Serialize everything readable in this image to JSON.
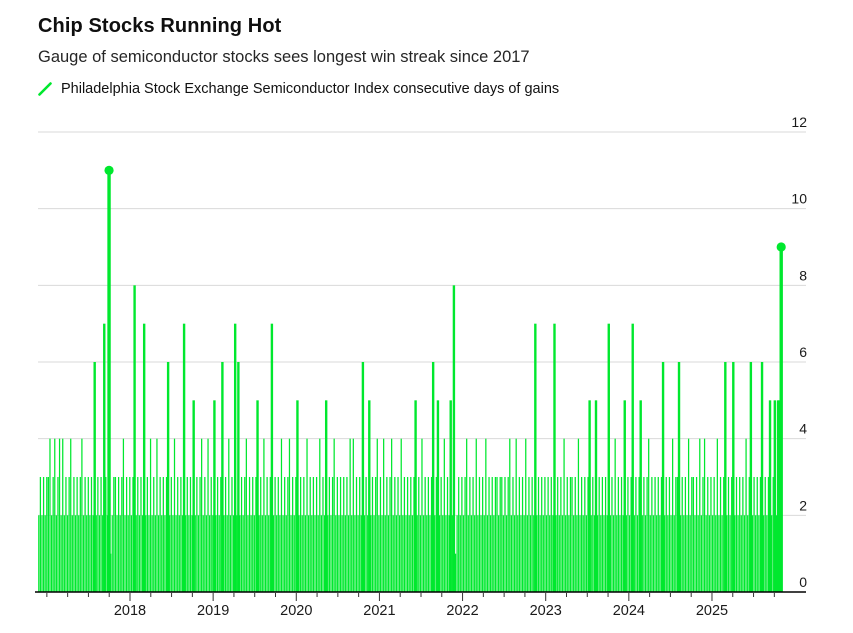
{
  "header": {
    "title": "Chip Stocks Running Hot",
    "subtitle": "Gauge of semiconductor stocks sees longest win streak since 2017"
  },
  "legend": {
    "icon": "green-slash-series-icon",
    "label": "Philadelphia Stock Exchange Semiconductor Index consecutive days of gains"
  },
  "chart_data": {
    "type": "bar",
    "title": "Chip Stocks Running Hot",
    "subtitle": "Gauge of semiconductor stocks sees longest win streak since 2017",
    "series_label": "Philadelphia Stock Exchange Semiconductor Index consecutive days of gains",
    "ylabel": "consecutive days of gains",
    "ylim": [
      0,
      12
    ],
    "yticks": [
      0,
      2,
      4,
      6,
      8,
      10,
      12
    ],
    "ytick_side": "right",
    "grid": "horizontal",
    "x_range_years": [
      2016.89,
      2025.84
    ],
    "x_year_labels": [
      "2018",
      "2019",
      "2020",
      "2021",
      "2022",
      "2023",
      "2024",
      "2025"
    ],
    "encoding_note": "weekly maximum of the daily consecutive-days-of-gains streak; one hex char per week, b = 11",
    "weekly_values": [
      {
        "year": "2016",
        "weeks": "232323"
      },
      {
        "year": "2017",
        "weeks": "34234234242323423232342323232623232732b1233232342323"
      },
      {
        "year": "2018",
        "weeks": "2382323272324232423232362324232327232325232342324232"
      },
      {
        "year": "2019",
        "weeks": "5232362324232726232342323235232423237232324232342323"
      },
      {
        "year": "2020",
        "weeks": "5232324232323242325232342323232324242323262325232342"
      },
      {
        "year": "2021",
        "weeks": "3242323423232423232323523242323236235232423252812323"
      },
      {
        "year": "2022",
        "weeks": "2342323242323242323233233232342324232324232327232323"
      },
      {
        "year": "2023",
        "weeks": "2323272323242323323242323235232523232327232423232523"
      },
      {
        "year": "2024",
        "weeks": "2372323523234232323236232324233623232423323242342323"
      },
      {
        "year": "2025",
        "weeks": "23242323623236232323242362323236232352352559"
      }
    ],
    "highlight_points": [
      {
        "year_x": 2017.79,
        "value": 11
      },
      {
        "year_x": 2025.84,
        "value": 9
      }
    ],
    "legend_position": "top-left",
    "colors": {
      "series": "#00e82e",
      "grid": "#d9d9d9",
      "axis": "#000000",
      "text": "#1a1a1a"
    }
  }
}
